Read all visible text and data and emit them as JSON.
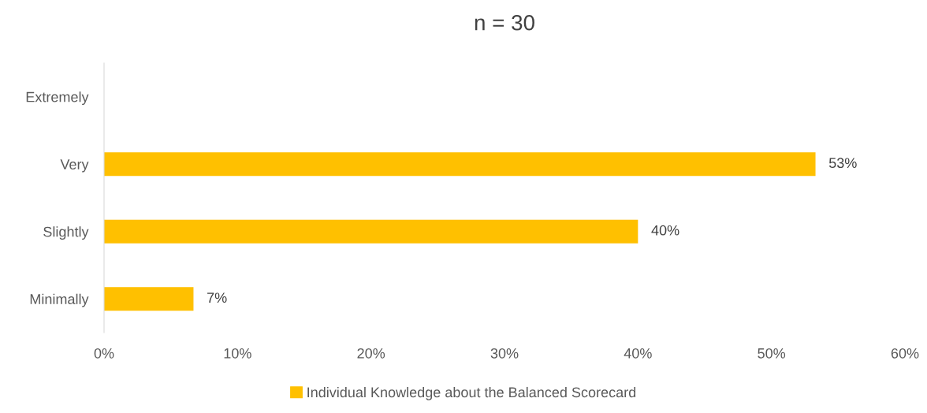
{
  "chart_data": {
    "type": "bar",
    "orientation": "horizontal",
    "title": "n = 30",
    "categories": [
      "Extremely",
      "Very",
      "Slightly",
      "Minimally"
    ],
    "series": [
      {
        "name": "Individual Knowledge about the Balanced Scorecard",
        "color": "#ffc000",
        "values": [
          null,
          53.3,
          40,
          6.7
        ]
      }
    ],
    "value_labels": [
      null,
      "53%",
      "40%",
      "7%"
    ],
    "xlim": [
      0,
      60
    ],
    "xticks": [
      {
        "value": 0,
        "label": "0%"
      },
      {
        "value": 10,
        "label": "10%"
      },
      {
        "value": 20,
        "label": "20%"
      },
      {
        "value": 30,
        "label": "30%"
      },
      {
        "value": 40,
        "label": "40%"
      },
      {
        "value": 50,
        "label": "50%"
      },
      {
        "value": 60,
        "label": "60%"
      }
    ],
    "grid": false,
    "legend": "bottom"
  }
}
